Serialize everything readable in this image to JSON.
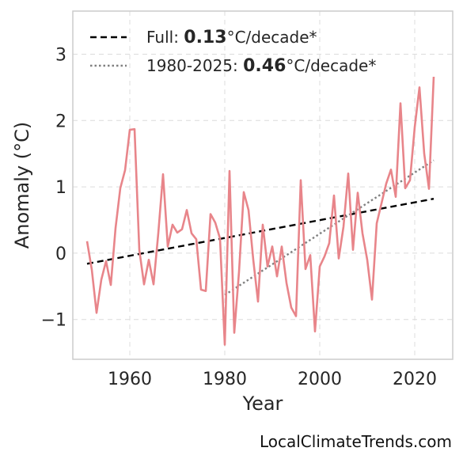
{
  "chart_data": {
    "type": "line",
    "xlabel": "Year",
    "ylabel": "Anomaly (°C)",
    "xlim": [
      1948,
      2028
    ],
    "ylim": [
      -1.6,
      3.65
    ],
    "xticks": [
      1960,
      1980,
      2000,
      2020
    ],
    "yticks": [
      -1,
      0,
      1,
      2,
      3
    ],
    "ytick_labels": [
      "−1",
      "0",
      "1",
      "2",
      "3"
    ],
    "grid": true,
    "legend_position": "top-left",
    "series": [
      {
        "color": "#e8858a",
        "x": [
          1951,
          1952,
          1953,
          1954,
          1955,
          1956,
          1957,
          1958,
          1959,
          1960,
          1961,
          1962,
          1963,
          1964,
          1965,
          1966,
          1967,
          1968,
          1969,
          1970,
          1971,
          1972,
          1973,
          1974,
          1975,
          1976,
          1977,
          1978,
          1979,
          1980,
          1981,
          1982,
          1983,
          1984,
          1985,
          1986,
          1987,
          1988,
          1989,
          1990,
          1991,
          1992,
          1993,
          1994,
          1995,
          1996,
          1997,
          1998,
          1999,
          2000,
          2001,
          2002,
          2003,
          2004,
          2005,
          2006,
          2007,
          2008,
          2009,
          2010,
          2011,
          2012,
          2013,
          2014,
          2015,
          2016,
          2017,
          2018,
          2019,
          2020,
          2021,
          2022,
          2023,
          2024
        ],
        "y": [
          0.18,
          -0.25,
          -0.9,
          -0.4,
          -0.12,
          -0.48,
          0.38,
          0.98,
          1.25,
          1.86,
          1.87,
          0.05,
          -0.47,
          -0.1,
          -0.47,
          0.3,
          1.19,
          0.1,
          0.43,
          0.31,
          0.36,
          0.65,
          0.3,
          0.21,
          -0.55,
          -0.57,
          0.59,
          0.46,
          0.22,
          -1.38,
          1.24,
          -1.2,
          -0.28,
          0.92,
          0.65,
          -0.1,
          -0.73,
          0.43,
          -0.2,
          0.1,
          -0.35,
          0.1,
          -0.45,
          -0.82,
          -0.95,
          1.1,
          -0.24,
          -0.03,
          -1.18,
          -0.2,
          -0.05,
          0.15,
          0.87,
          -0.08,
          0.4,
          1.2,
          0.05,
          0.91,
          0.3,
          -0.1,
          -0.7,
          0.45,
          0.75,
          1.05,
          1.26,
          0.85,
          2.26,
          0.98,
          1.1,
          1.9,
          2.5,
          1.5,
          0.97,
          2.66
        ]
      }
    ],
    "trends": [
      {
        "label": "Full: ",
        "value": "0.13",
        "unit": "°C/decade*",
        "x": [
          1951,
          2024
        ],
        "y": [
          -0.16,
          0.82
        ],
        "color": "#000000",
        "style": "dashed"
      },
      {
        "label": "1980-2025: ",
        "value": "0.46",
        "unit": "°C/decade*",
        "x": [
          1980,
          2024
        ],
        "y": [
          -0.63,
          1.4
        ],
        "color": "#808080",
        "style": "dotted"
      }
    ]
  },
  "credit": "LocalClimateTrends.com"
}
